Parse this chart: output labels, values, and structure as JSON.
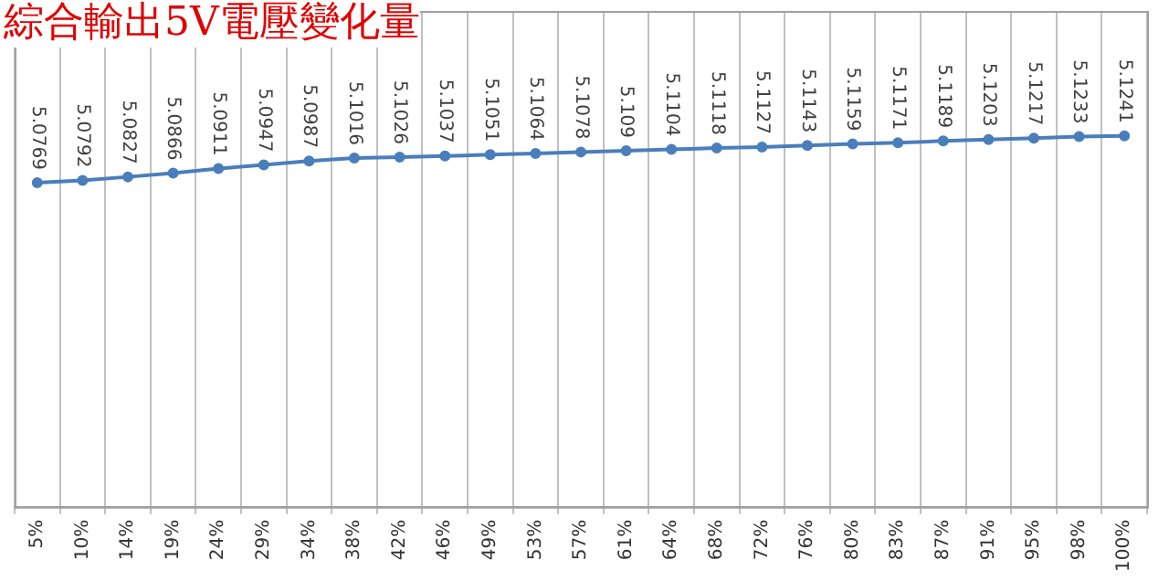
{
  "chart_data": {
    "type": "line",
    "title": "綜合輸出5V電壓變化量",
    "categories": [
      "5%",
      "10%",
      "14%",
      "19%",
      "24%",
      "29%",
      "34%",
      "38%",
      "42%",
      "46%",
      "49%",
      "53%",
      "57%",
      "61%",
      "64%",
      "68%",
      "72%",
      "76%",
      "80%",
      "83%",
      "87%",
      "91%",
      "95%",
      "98%",
      "100%"
    ],
    "series": [
      {
        "color": "#4a7ebb",
        "values": [
          5.0769,
          5.0792,
          5.0827,
          5.0866,
          5.0911,
          5.0947,
          5.0987,
          5.1016,
          5.1026,
          5.1037,
          5.1051,
          5.1064,
          5.1078,
          5.109,
          5.1104,
          5.1118,
          5.1127,
          5.1143,
          5.1159,
          5.1171,
          5.1189,
          5.1203,
          5.1217,
          5.1233,
          5.1241
        ]
      }
    ],
    "ylim": [
      4.75,
      5.25
    ],
    "tick_labels": "x",
    "grid": "x",
    "legend": false,
    "marker": "circle",
    "line_style": "solid",
    "data_labels": true
  }
}
